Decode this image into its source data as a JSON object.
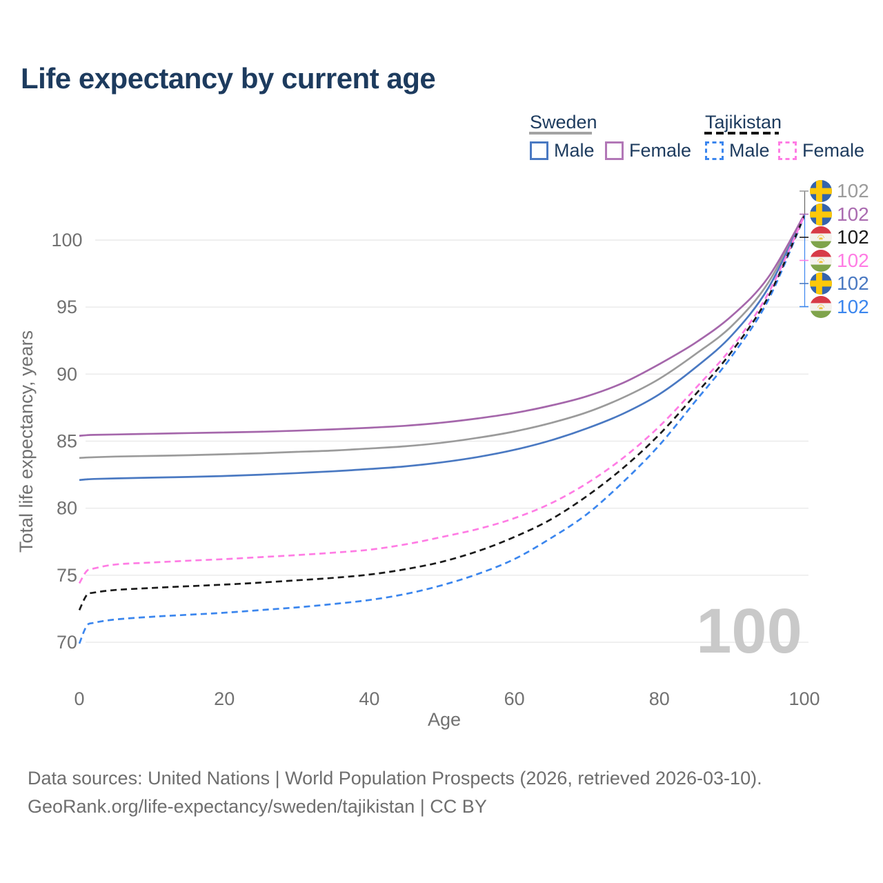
{
  "title": "Life expectancy by current age",
  "legend": {
    "groups": [
      {
        "label": "Sweden",
        "line_style": "solid",
        "underline_color": "#a3a3a3"
      },
      {
        "label": "Tajikistan",
        "line_style": "dashed",
        "underline_color": "#141414"
      }
    ],
    "items": [
      {
        "label": "Male",
        "group": "Sweden",
        "color": "#4a79c2",
        "dashed": false
      },
      {
        "label": "Female",
        "group": "Sweden",
        "color": "#b277b7",
        "dashed": false
      },
      {
        "label": "Male",
        "group": "Tajikistan",
        "color": "#3b86ee",
        "dashed": true
      },
      {
        "label": "Female",
        "group": "Tajikistan",
        "color": "#ff7ce4",
        "dashed": true
      }
    ]
  },
  "chart_data": {
    "type": "line",
    "title": "Life expectancy by current age",
    "xlabel": "Age",
    "ylabel": "Total life expectancy, years",
    "xlim": [
      0,
      100
    ],
    "ylim": [
      69,
      103
    ],
    "xticks": [
      0,
      20,
      40,
      60,
      80,
      100
    ],
    "yticks": [
      70,
      75,
      80,
      85,
      90,
      95,
      100
    ],
    "grid": "horizontal",
    "grid_color": "#eaeaea",
    "x": [
      0,
      1,
      2,
      5,
      10,
      15,
      20,
      25,
      30,
      35,
      40,
      45,
      50,
      55,
      60,
      65,
      70,
      75,
      80,
      85,
      90,
      95,
      100
    ],
    "series": [
      {
        "name": "Sweden (both sexes)",
        "color": "#9b9b9b",
        "dashed": false,
        "values": [
          83.75,
          83.78,
          83.8,
          83.85,
          83.9,
          83.95,
          84.02,
          84.1,
          84.2,
          84.3,
          84.45,
          84.62,
          84.88,
          85.25,
          85.72,
          86.35,
          87.15,
          88.25,
          89.65,
          91.5,
          93.6,
          96.8,
          101.88
        ]
      },
      {
        "name": "Sweden Male",
        "color": "#4a79c2",
        "dashed": false,
        "values": [
          82.1,
          82.15,
          82.18,
          82.22,
          82.28,
          82.33,
          82.4,
          82.5,
          82.62,
          82.75,
          82.92,
          83.12,
          83.42,
          83.82,
          84.35,
          85.05,
          85.95,
          87.05,
          88.5,
          90.5,
          92.9,
          96.4,
          101.85
        ]
      },
      {
        "name": "Sweden Female",
        "color": "#a567ab",
        "dashed": false,
        "values": [
          85.4,
          85.45,
          85.47,
          85.5,
          85.55,
          85.6,
          85.65,
          85.7,
          85.78,
          85.88,
          86.0,
          86.15,
          86.38,
          86.7,
          87.1,
          87.65,
          88.35,
          89.35,
          90.75,
          92.35,
          94.35,
          97.2,
          101.9
        ]
      },
      {
        "name": "Tajikistan Male",
        "color": "#3b86ee",
        "dashed": true,
        "values": [
          69.9,
          71.2,
          71.45,
          71.7,
          71.9,
          72.05,
          72.2,
          72.4,
          72.6,
          72.85,
          73.15,
          73.6,
          74.25,
          75.1,
          76.2,
          77.75,
          79.55,
          81.95,
          84.7,
          88.0,
          91.35,
          95.5,
          101.78
        ]
      },
      {
        "name": "Tajikistan (both sexes)",
        "color": "#1b1b1b",
        "dashed": true,
        "values": [
          72.4,
          73.5,
          73.7,
          73.9,
          74.05,
          74.18,
          74.3,
          74.45,
          74.62,
          74.8,
          75.05,
          75.45,
          76.0,
          76.8,
          77.85,
          79.15,
          80.9,
          83.0,
          85.5,
          88.5,
          91.7,
          95.75,
          101.8
        ]
      },
      {
        "name": "Tajikistan Female",
        "color": "#ff7ce4",
        "dashed": true,
        "values": [
          74.4,
          75.3,
          75.5,
          75.8,
          75.95,
          76.08,
          76.2,
          76.35,
          76.5,
          76.68,
          76.9,
          77.3,
          77.85,
          78.45,
          79.25,
          80.35,
          81.85,
          83.75,
          86.1,
          88.95,
          92.0,
          96.0,
          101.82
        ]
      }
    ],
    "endpoint_labels": [
      {
        "flag": "sweden",
        "series": "Sweden (both sexes)",
        "value": "102",
        "color": "#9b9b9b"
      },
      {
        "flag": "sweden",
        "series": "Sweden Female",
        "value": "102",
        "color": "#aa6bb0"
      },
      {
        "flag": "tajikistan",
        "series": "Tajikistan (both sexes)",
        "value": "102",
        "color": "#1b1b1b"
      },
      {
        "flag": "tajikistan",
        "series": "Tajikistan Female",
        "value": "102",
        "color": "#ff7ce4"
      },
      {
        "flag": "sweden",
        "series": "Sweden Male",
        "value": "102",
        "color": "#4a79c2"
      },
      {
        "flag": "tajikistan",
        "series": "Tajikistan Male",
        "value": "102",
        "color": "#3b86ee"
      }
    ],
    "watermark": "100",
    "legend_position": "top-right"
  },
  "footer": {
    "line1": "Data sources: United Nations | World Population Prospects (2026, retrieved 2026-03-10).",
    "line2": "GeoRank.org/life-expectancy/sweden/tajikistan | CC BY"
  }
}
